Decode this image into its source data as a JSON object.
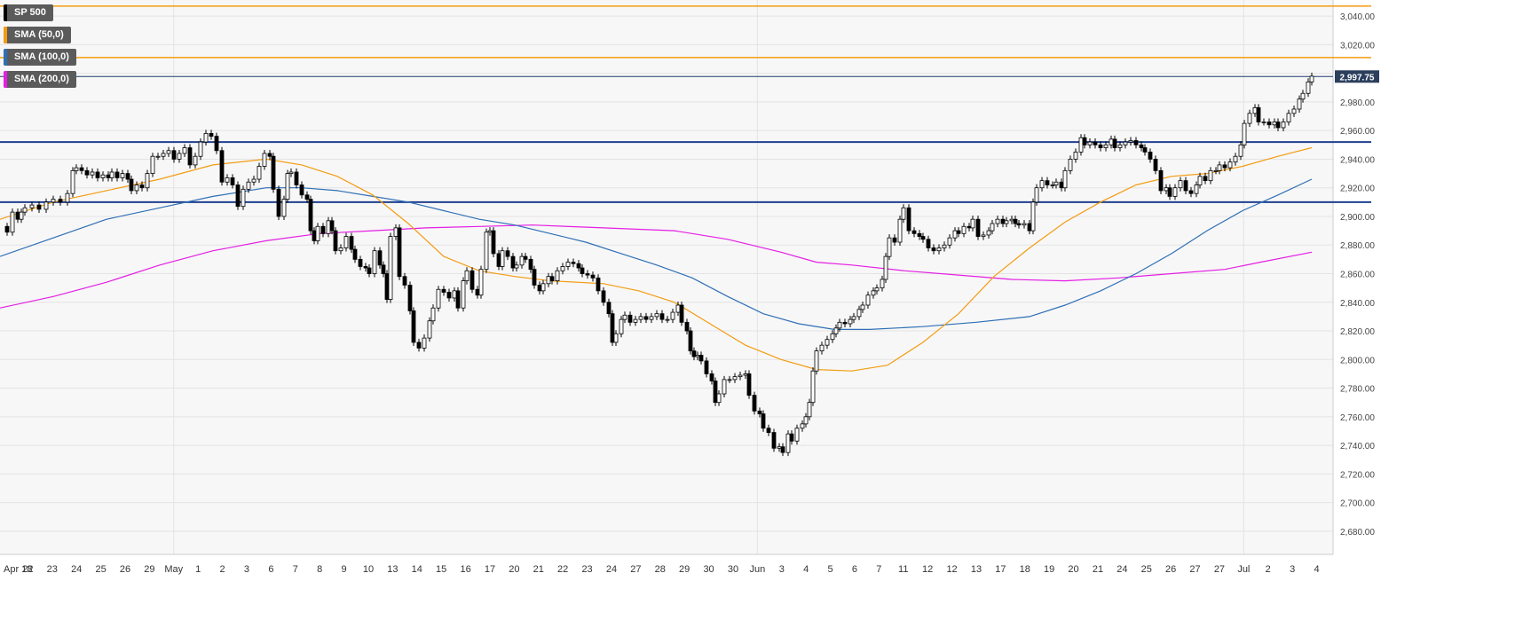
{
  "chart_data": {
    "type": "candlestick",
    "title": "SP 500",
    "legend": [
      {
        "label": "SP 500",
        "color": "#000000"
      },
      {
        "label": "SMA (50,0)",
        "color": "#f39c12"
      },
      {
        "label": "SMA (100,0)",
        "color": "#2e6fb5"
      },
      {
        "label": "SMA (200,0)",
        "color": "#e41ee4"
      }
    ],
    "ylim": [
      2670,
      3060
    ],
    "y_ticks": [
      "2,680.00",
      "2,700.00",
      "2,720.00",
      "2,740.00",
      "2,760.00",
      "2,780.00",
      "2,800.00",
      "2,820.00",
      "2,840.00",
      "2,860.00",
      "2,880.00",
      "2,900.00",
      "2,920.00",
      "2,940.00",
      "2,960.00",
      "2,980.00",
      "3,000.00",
      "3,020.00",
      "3,040.00"
    ],
    "x_labels": [
      "Apr 18",
      "22",
      "23",
      "24",
      "25",
      "26",
      "29",
      "May",
      "1",
      "2",
      "3",
      "6",
      "7",
      "8",
      "9",
      "10",
      "13",
      "14",
      "15",
      "16",
      "17",
      "20",
      "21",
      "22",
      "23",
      "24",
      "27",
      "28",
      "29",
      "30",
      "30",
      "Jun",
      "3",
      "4",
      "5",
      "6",
      "7",
      "11",
      "12",
      "12",
      "13",
      "17",
      "18",
      "19",
      "20",
      "21",
      "24",
      "25",
      "26",
      "27",
      "27",
      "Jul",
      "2",
      "3",
      "4"
    ],
    "current_price": "2,997.75",
    "resistance_levels": [
      3047,
      3011
    ],
    "support_levels": [
      2952,
      2910
    ],
    "close_points": [
      [
        0,
        2893
      ],
      [
        8,
        2889
      ],
      [
        14,
        2903
      ],
      [
        20,
        2898
      ],
      [
        24,
        2903
      ],
      [
        28,
        2906
      ],
      [
        36,
        2908
      ],
      [
        44,
        2905
      ],
      [
        52,
        2910
      ],
      [
        60,
        2912
      ],
      [
        68,
        2910
      ],
      [
        76,
        2916
      ],
      [
        82,
        2932
      ],
      [
        86,
        2934
      ],
      [
        92,
        2932
      ],
      [
        98,
        2929
      ],
      [
        104,
        2931
      ],
      [
        110,
        2927
      ],
      [
        116,
        2929
      ],
      [
        122,
        2927
      ],
      [
        126,
        2931
      ],
      [
        132,
        2927
      ],
      [
        138,
        2930
      ],
      [
        144,
        2926
      ],
      [
        148,
        2918
      ],
      [
        154,
        2922
      ],
      [
        160,
        2920
      ],
      [
        166,
        2930
      ],
      [
        172,
        2942
      ],
      [
        178,
        2942
      ],
      [
        184,
        2944
      ],
      [
        190,
        2946
      ],
      [
        196,
        2940
      ],
      [
        202,
        2944
      ],
      [
        208,
        2948
      ],
      [
        214,
        2936
      ],
      [
        220,
        2942
      ],
      [
        226,
        2952
      ],
      [
        232,
        2958
      ],
      [
        238,
        2956
      ],
      [
        244,
        2946
      ],
      [
        250,
        2924
      ],
      [
        256,
        2927
      ],
      [
        262,
        2922
      ],
      [
        268,
        2907
      ],
      [
        274,
        2919
      ],
      [
        280,
        2924
      ],
      [
        286,
        2926
      ],
      [
        292,
        2935
      ],
      [
        298,
        2944
      ],
      [
        304,
        2942
      ],
      [
        308,
        2919
      ],
      [
        314,
        2900
      ],
      [
        320,
        2912
      ],
      [
        324,
        2930
      ],
      [
        328,
        2931
      ],
      [
        334,
        2922
      ],
      [
        340,
        2915
      ],
      [
        346,
        2912
      ],
      [
        350,
        2890
      ],
      [
        354,
        2883
      ],
      [
        358,
        2893
      ],
      [
        364,
        2888
      ],
      [
        370,
        2897
      ],
      [
        374,
        2890
      ],
      [
        378,
        2876
      ],
      [
        384,
        2878
      ],
      [
        390,
        2886
      ],
      [
        396,
        2877
      ],
      [
        400,
        2870
      ],
      [
        406,
        2865
      ],
      [
        412,
        2864
      ],
      [
        416,
        2860
      ],
      [
        422,
        2876
      ],
      [
        428,
        2866
      ],
      [
        432,
        2860
      ],
      [
        436,
        2842
      ],
      [
        440,
        2886
      ],
      [
        446,
        2892
      ],
      [
        450,
        2858
      ],
      [
        456,
        2852
      ],
      [
        462,
        2834
      ],
      [
        466,
        2812
      ],
      [
        472,
        2808
      ],
      [
        478,
        2815
      ],
      [
        484,
        2827
      ],
      [
        488,
        2836
      ],
      [
        494,
        2849
      ],
      [
        500,
        2847
      ],
      [
        506,
        2843
      ],
      [
        512,
        2848
      ],
      [
        516,
        2836
      ],
      [
        522,
        2855
      ],
      [
        526,
        2862
      ],
      [
        532,
        2849
      ],
      [
        538,
        2845
      ],
      [
        542,
        2863
      ],
      [
        548,
        2889
      ],
      [
        552,
        2890
      ],
      [
        556,
        2874
      ],
      [
        562,
        2865
      ],
      [
        566,
        2876
      ],
      [
        572,
        2872
      ],
      [
        578,
        2864
      ],
      [
        582,
        2866
      ],
      [
        588,
        2872
      ],
      [
        592,
        2870
      ],
      [
        598,
        2863
      ],
      [
        602,
        2852
      ],
      [
        608,
        2848
      ],
      [
        612,
        2853
      ],
      [
        618,
        2858
      ],
      [
        622,
        2855
      ],
      [
        628,
        2862
      ],
      [
        634,
        2865
      ],
      [
        640,
        2868
      ],
      [
        646,
        2867
      ],
      [
        652,
        2864
      ],
      [
        656,
        2860
      ],
      [
        662,
        2859
      ],
      [
        668,
        2857
      ],
      [
        674,
        2848
      ],
      [
        680,
        2840
      ],
      [
        686,
        2832
      ],
      [
        690,
        2812
      ],
      [
        694,
        2818
      ],
      [
        700,
        2828
      ],
      [
        704,
        2831
      ],
      [
        710,
        2826
      ],
      [
        716,
        2828
      ],
      [
        722,
        2830
      ],
      [
        728,
        2828
      ],
      [
        734,
        2830
      ],
      [
        740,
        2832
      ],
      [
        746,
        2828
      ],
      [
        752,
        2828
      ],
      [
        758,
        2833
      ],
      [
        764,
        2838
      ],
      [
        768,
        2826
      ],
      [
        774,
        2820
      ],
      [
        778,
        2806
      ],
      [
        782,
        2802
      ],
      [
        786,
        2803
      ],
      [
        790,
        2799
      ],
      [
        796,
        2790
      ],
      [
        802,
        2785
      ],
      [
        806,
        2770
      ],
      [
        810,
        2776
      ],
      [
        816,
        2786
      ],
      [
        822,
        2786
      ],
      [
        828,
        2788
      ],
      [
        834,
        2789
      ],
      [
        840,
        2790
      ],
      [
        844,
        2775
      ],
      [
        850,
        2764
      ],
      [
        856,
        2762
      ],
      [
        860,
        2752
      ],
      [
        866,
        2749
      ],
      [
        872,
        2738
      ],
      [
        878,
        2739
      ],
      [
        882,
        2735
      ],
      [
        888,
        2748
      ],
      [
        892,
        2743
      ],
      [
        898,
        2752
      ],
      [
        904,
        2755
      ],
      [
        908,
        2760
      ],
      [
        912,
        2770
      ],
      [
        916,
        2792
      ],
      [
        920,
        2806
      ],
      [
        926,
        2810
      ],
      [
        932,
        2814
      ],
      [
        938,
        2818
      ],
      [
        942,
        2822
      ],
      [
        946,
        2826
      ],
      [
        952,
        2825
      ],
      [
        958,
        2828
      ],
      [
        962,
        2830
      ],
      [
        968,
        2835
      ],
      [
        972,
        2838
      ],
      [
        978,
        2845
      ],
      [
        984,
        2848
      ],
      [
        988,
        2850
      ],
      [
        994,
        2856
      ],
      [
        998,
        2872
      ],
      [
        1002,
        2885
      ],
      [
        1008,
        2882
      ],
      [
        1014,
        2898
      ],
      [
        1018,
        2906
      ],
      [
        1024,
        2890
      ],
      [
        1030,
        2888
      ],
      [
        1036,
        2886
      ],
      [
        1040,
        2884
      ],
      [
        1046,
        2878
      ],
      [
        1052,
        2876
      ],
      [
        1058,
        2878
      ],
      [
        1064,
        2880
      ],
      [
        1070,
        2885
      ],
      [
        1076,
        2890
      ],
      [
        1080,
        2888
      ],
      [
        1086,
        2893
      ],
      [
        1092,
        2892
      ],
      [
        1096,
        2898
      ],
      [
        1102,
        2886
      ],
      [
        1108,
        2887
      ],
      [
        1114,
        2890
      ],
      [
        1118,
        2895
      ],
      [
        1124,
        2898
      ],
      [
        1130,
        2895
      ],
      [
        1134,
        2897
      ],
      [
        1140,
        2898
      ],
      [
        1144,
        2895
      ],
      [
        1148,
        2894
      ],
      [
        1154,
        2895
      ],
      [
        1160,
        2890
      ],
      [
        1164,
        2910
      ],
      [
        1168,
        2920
      ],
      [
        1174,
        2925
      ],
      [
        1180,
        2922
      ],
      [
        1186,
        2922
      ],
      [
        1190,
        2924
      ],
      [
        1196,
        2920
      ],
      [
        1200,
        2932
      ],
      [
        1206,
        2940
      ],
      [
        1212,
        2945
      ],
      [
        1218,
        2955
      ],
      [
        1222,
        2950
      ],
      [
        1228,
        2952
      ],
      [
        1234,
        2950
      ],
      [
        1240,
        2948
      ],
      [
        1246,
        2950
      ],
      [
        1252,
        2954
      ],
      [
        1256,
        2948
      ],
      [
        1262,
        2950
      ],
      [
        1268,
        2952
      ],
      [
        1274,
        2953
      ],
      [
        1280,
        2950
      ],
      [
        1286,
        2948
      ],
      [
        1290,
        2945
      ],
      [
        1296,
        2940
      ],
      [
        1302,
        2932
      ],
      [
        1308,
        2918
      ],
      [
        1314,
        2920
      ],
      [
        1318,
        2914
      ],
      [
        1324,
        2920
      ],
      [
        1330,
        2925
      ],
      [
        1336,
        2918
      ],
      [
        1342,
        2916
      ],
      [
        1348,
        2922
      ],
      [
        1352,
        2928
      ],
      [
        1358,
        2925
      ],
      [
        1364,
        2932
      ],
      [
        1370,
        2932
      ],
      [
        1374,
        2936
      ],
      [
        1380,
        2934
      ],
      [
        1386,
        2938
      ],
      [
        1392,
        2942
      ],
      [
        1398,
        2950
      ],
      [
        1402,
        2965
      ],
      [
        1408,
        2972
      ],
      [
        1414,
        2976
      ],
      [
        1418,
        2966
      ],
      [
        1424,
        2966
      ],
      [
        1430,
        2964
      ],
      [
        1436,
        2966
      ],
      [
        1440,
        2962
      ],
      [
        1446,
        2966
      ],
      [
        1452,
        2972
      ],
      [
        1458,
        2975
      ],
      [
        1464,
        2982
      ],
      [
        1468,
        2986
      ],
      [
        1474,
        2994
      ],
      [
        1478,
        2998
      ]
    ],
    "sma50": [
      [
        0,
        2898
      ],
      [
        60,
        2910
      ],
      [
        120,
        2918
      ],
      [
        180,
        2926
      ],
      [
        240,
        2936
      ],
      [
        300,
        2940
      ],
      [
        340,
        2936
      ],
      [
        380,
        2928
      ],
      [
        420,
        2915
      ],
      [
        460,
        2895
      ],
      [
        500,
        2872
      ],
      [
        540,
        2862
      ],
      [
        580,
        2858
      ],
      [
        620,
        2855
      ],
      [
        680,
        2853
      ],
      [
        720,
        2848
      ],
      [
        760,
        2840
      ],
      [
        800,
        2825
      ],
      [
        840,
        2810
      ],
      [
        880,
        2800
      ],
      [
        920,
        2793
      ],
      [
        960,
        2792
      ],
      [
        1000,
        2796
      ],
      [
        1040,
        2812
      ],
      [
        1080,
        2832
      ],
      [
        1120,
        2858
      ],
      [
        1160,
        2878
      ],
      [
        1200,
        2896
      ],
      [
        1240,
        2910
      ],
      [
        1280,
        2922
      ],
      [
        1320,
        2928
      ],
      [
        1360,
        2930
      ],
      [
        1400,
        2935
      ],
      [
        1440,
        2942
      ],
      [
        1478,
        2948
      ]
    ],
    "sma100": [
      [
        0,
        2872
      ],
      [
        60,
        2885
      ],
      [
        120,
        2898
      ],
      [
        180,
        2906
      ],
      [
        240,
        2914
      ],
      [
        300,
        2920
      ],
      [
        340,
        2920
      ],
      [
        380,
        2918
      ],
      [
        420,
        2914
      ],
      [
        460,
        2910
      ],
      [
        500,
        2904
      ],
      [
        540,
        2898
      ],
      [
        580,
        2894
      ],
      [
        620,
        2888
      ],
      [
        660,
        2882
      ],
      [
        700,
        2874
      ],
      [
        740,
        2866
      ],
      [
        780,
        2857
      ],
      [
        820,
        2844
      ],
      [
        860,
        2832
      ],
      [
        900,
        2825
      ],
      [
        940,
        2821
      ],
      [
        980,
        2821
      ],
      [
        1040,
        2823
      ],
      [
        1100,
        2826
      ],
      [
        1160,
        2830
      ],
      [
        1200,
        2838
      ],
      [
        1240,
        2848
      ],
      [
        1280,
        2860
      ],
      [
        1320,
        2874
      ],
      [
        1360,
        2890
      ],
      [
        1400,
        2904
      ],
      [
        1440,
        2915
      ],
      [
        1478,
        2926
      ]
    ],
    "sma200": [
      [
        0,
        2836
      ],
      [
        60,
        2844
      ],
      [
        120,
        2854
      ],
      [
        180,
        2866
      ],
      [
        240,
        2876
      ],
      [
        300,
        2883
      ],
      [
        360,
        2888
      ],
      [
        420,
        2890
      ],
      [
        480,
        2892
      ],
      [
        540,
        2893
      ],
      [
        600,
        2894
      ],
      [
        680,
        2892
      ],
      [
        760,
        2890
      ],
      [
        820,
        2884
      ],
      [
        880,
        2875
      ],
      [
        920,
        2868
      ],
      [
        960,
        2866
      ],
      [
        1020,
        2862
      ],
      [
        1080,
        2859
      ],
      [
        1140,
        2856
      ],
      [
        1200,
        2855
      ],
      [
        1260,
        2857
      ],
      [
        1320,
        2860
      ],
      [
        1380,
        2863
      ],
      [
        1420,
        2868
      ],
      [
        1478,
        2875
      ]
    ]
  }
}
